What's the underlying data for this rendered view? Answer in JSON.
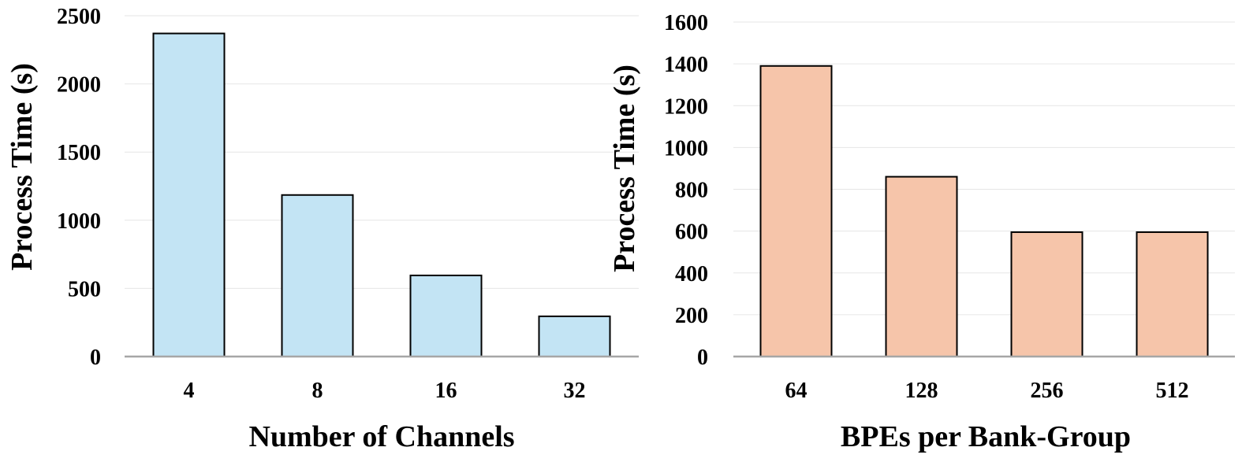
{
  "chart_data": [
    {
      "type": "bar",
      "title": "",
      "xlabel": "Number of Channels",
      "ylabel": "Process Time (s)",
      "categories": [
        "4",
        "8",
        "16",
        "32"
      ],
      "values": [
        2370,
        1185,
        595,
        295
      ],
      "ylim": [
        0,
        2500
      ],
      "yticks": [
        "0",
        "500",
        "1000",
        "1500",
        "2000",
        "2500"
      ],
      "grid": true,
      "legend": "none",
      "bar_color": "#c3e4f4"
    },
    {
      "type": "bar",
      "title": "",
      "xlabel": "BPEs per Bank-Group",
      "ylabel": "Process Time (s)",
      "categories": [
        "64",
        "128",
        "256",
        "512"
      ],
      "values": [
        1390,
        860,
        595,
        595
      ],
      "ylim": [
        0,
        1600
      ],
      "yticks": [
        "0",
        "200",
        "400",
        "600",
        "800",
        "1000",
        "1200",
        "1400",
        "1600"
      ],
      "grid": true,
      "legend": "none",
      "bar_color": "#f6c5aa"
    }
  ]
}
